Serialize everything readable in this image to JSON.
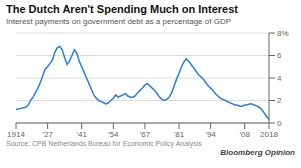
{
  "chart_data": {
    "type": "line",
    "title": "The Dutch Aren't Spending Much on Interest",
    "subtitle": "Interest payments on government debt as a percentage of GDP",
    "annotations": [
      "Source: CPB Netherlands Bureau for Economic Policy Analysis",
      "Bloomberg Opinion"
    ],
    "color": "#2a7de1",
    "grid": true,
    "xlim": [
      1914,
      2018
    ],
    "ylim": [
      0,
      8
    ],
    "xticks": [
      1914,
      {
        "value": 1927,
        "label": "'27"
      },
      {
        "value": 1941,
        "label": "'41"
      },
      {
        "value": 1954,
        "label": "'54"
      },
      {
        "value": 1967,
        "label": "'67"
      },
      {
        "value": 1981,
        "label": "'81"
      },
      {
        "value": 1994,
        "label": "'94"
      },
      {
        "value": 2008,
        "label": "'08"
      },
      2018
    ],
    "yticks": [
      0,
      2,
      4,
      6,
      {
        "value": 8,
        "label": "8%"
      }
    ],
    "x": [
      1914,
      1915,
      1916,
      1917,
      1918,
      1919,
      1920,
      1921,
      1922,
      1923,
      1924,
      1925,
      1926,
      1927,
      1928,
      1929,
      1930,
      1931,
      1932,
      1933,
      1934,
      1935,
      1936,
      1937,
      1938,
      1939,
      1940,
      1941,
      1942,
      1943,
      1944,
      1945,
      1946,
      1947,
      1948,
      1949,
      1950,
      1951,
      1952,
      1953,
      1954,
      1955,
      1956,
      1957,
      1958,
      1959,
      1960,
      1961,
      1962,
      1963,
      1964,
      1965,
      1966,
      1967,
      1968,
      1969,
      1970,
      1971,
      1972,
      1973,
      1974,
      1975,
      1976,
      1977,
      1978,
      1979,
      1980,
      1981,
      1982,
      1983,
      1984,
      1985,
      1986,
      1987,
      1988,
      1989,
      1990,
      1991,
      1992,
      1993,
      1994,
      1995,
      1996,
      1997,
      1998,
      1999,
      2000,
      2001,
      2002,
      2003,
      2004,
      2005,
      2006,
      2007,
      2008,
      2009,
      2010,
      2011,
      2012,
      2013,
      2014,
      2015,
      2016,
      2017,
      2018
    ],
    "values": [
      1.2,
      1.25,
      1.3,
      1.35,
      1.4,
      1.6,
      2.0,
      2.3,
      2.7,
      3.1,
      3.6,
      4.2,
      4.8,
      5.0,
      5.3,
      5.6,
      6.3,
      6.7,
      6.8,
      6.5,
      5.8,
      5.2,
      5.5,
      6.0,
      6.5,
      6.2,
      5.5,
      5.0,
      4.5,
      4.0,
      3.5,
      3.0,
      2.5,
      2.2,
      2.0,
      1.9,
      1.8,
      1.7,
      1.8,
      2.0,
      2.2,
      2.5,
      2.3,
      2.4,
      2.5,
      2.6,
      2.4,
      2.3,
      2.3,
      2.4,
      2.7,
      2.9,
      3.1,
      3.4,
      3.5,
      3.3,
      3.1,
      2.9,
      2.6,
      2.3,
      2.1,
      2.0,
      2.1,
      2.3,
      2.7,
      3.3,
      3.9,
      4.4,
      5.0,
      5.4,
      5.7,
      5.5,
      5.2,
      4.9,
      4.6,
      4.3,
      4.1,
      3.9,
      3.6,
      3.3,
      3.1,
      2.9,
      2.6,
      2.4,
      2.2,
      2.1,
      2.0,
      1.9,
      1.8,
      1.7,
      1.6,
      1.6,
      1.5,
      1.5,
      1.6,
      1.6,
      1.7,
      1.7,
      1.6,
      1.5,
      1.4,
      1.2,
      0.9,
      0.6,
      0.3
    ]
  }
}
